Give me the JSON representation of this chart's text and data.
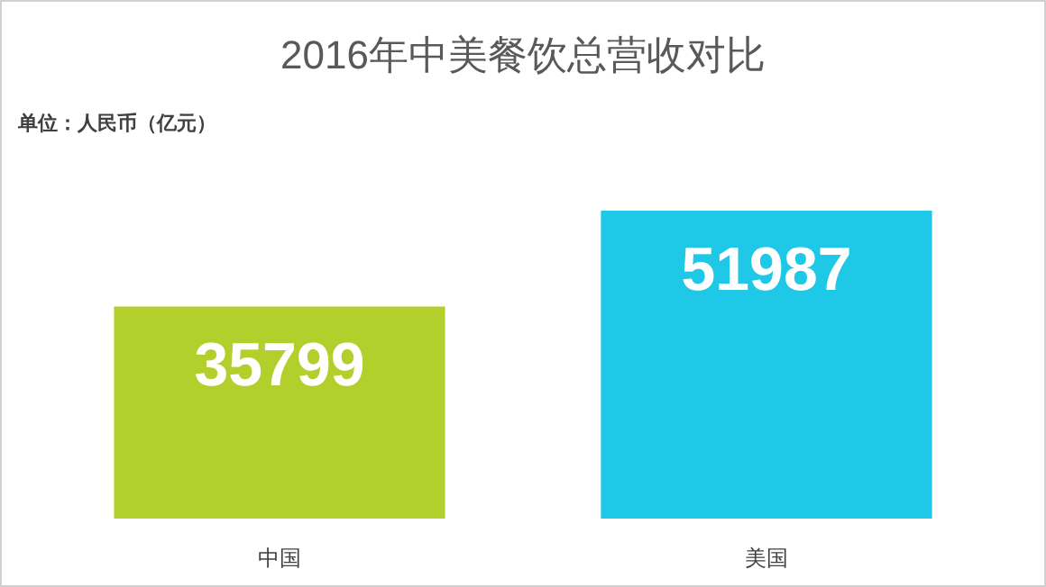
{
  "chart_data": {
    "type": "bar",
    "title": "2016年中美餐饮总营收对比",
    "subtitle": "单位：人民币（亿元）",
    "categories": [
      "中国",
      "美国"
    ],
    "values": [
      35799,
      51987
    ],
    "colors": [
      "#b3cf2c",
      "#1ec8e6"
    ],
    "data_labels": true
  }
}
